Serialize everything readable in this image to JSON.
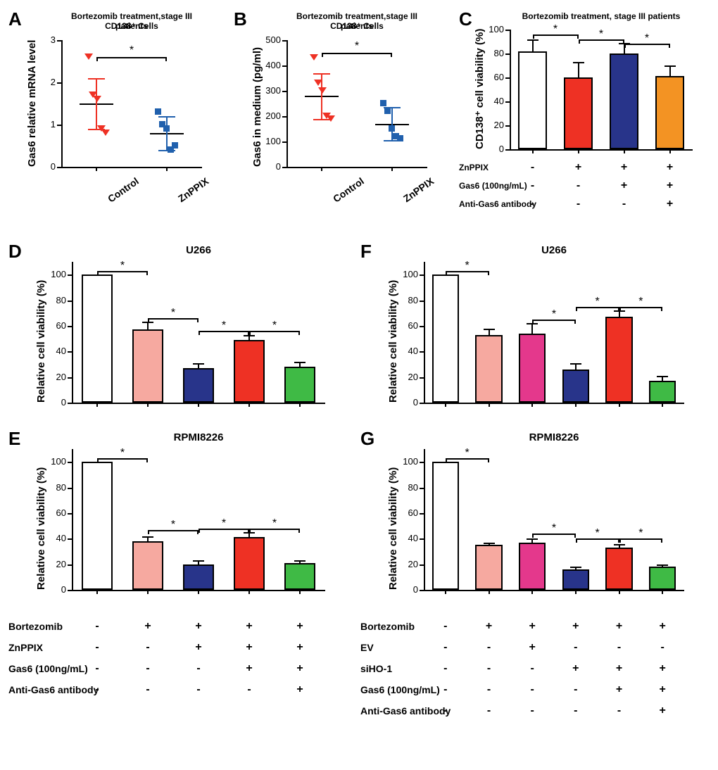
{
  "colors": {
    "red": "#ee3124",
    "blue_deep": "#28348a",
    "blue_bright": "#2060ad",
    "salmon": "#f6a9a0",
    "magenta": "#e4388c",
    "orange": "#f39323",
    "green": "#3fba45",
    "white": "#ffffff",
    "black": "#000000"
  },
  "axis_font_size": 13,
  "axis_label_font_size": 15,
  "panelA": {
    "letter": "A",
    "title_l1": "Bortezomib treatment,stage III patients",
    "title_l2": "CD138⁺ Cells",
    "title_fontsize": 12,
    "ylabel": "Gas6 relative mRNA level",
    "ylim": [
      0,
      3
    ],
    "yticks": [
      0,
      1,
      2,
      3
    ],
    "categories": [
      "Control",
      "ZnPPIX"
    ],
    "groups": [
      {
        "color": "#ee3124",
        "marker": "triangle-down",
        "points": [
          2.6,
          1.7,
          1.6,
          0.9,
          0.8
        ],
        "mean": 1.5,
        "err": 0.6
      },
      {
        "color": "#2060ad",
        "marker": "square",
        "points": [
          1.3,
          1.0,
          0.9,
          0.4,
          0.5
        ],
        "mean": 0.8,
        "err": 0.4
      }
    ],
    "sig": {
      "from": 0,
      "to": 1,
      "y": 2.6,
      "label": "*"
    }
  },
  "panelB": {
    "letter": "B",
    "title_l1": "Bortezomib treatment,stage III patients",
    "title_l2": "CD138⁺ Cells",
    "title_fontsize": 12,
    "ylabel": "Gas6 in medium (pg/ml)",
    "ylim": [
      0,
      500
    ],
    "yticks": [
      0,
      100,
      200,
      300,
      400,
      500
    ],
    "categories": [
      "Control",
      "ZnPPIX"
    ],
    "groups": [
      {
        "color": "#ee3124",
        "marker": "triangle-down",
        "points": [
          430,
          330,
          300,
          200,
          190
        ],
        "mean": 280,
        "err": 90
      },
      {
        "color": "#2060ad",
        "marker": "square",
        "points": [
          250,
          220,
          150,
          120,
          110
        ],
        "mean": 170,
        "err": 65
      }
    ],
    "sig": {
      "from": 0,
      "to": 1,
      "y": 450,
      "label": "*"
    }
  },
  "panelC": {
    "letter": "C",
    "title": "Bortezomib treatment, stage III patients",
    "title_fontsize": 12,
    "ylabel": "CD138⁺ cell viability (%)",
    "ylim": [
      0,
      100
    ],
    "yticks": [
      0,
      20,
      40,
      60,
      80,
      100
    ],
    "bars": [
      {
        "value": 82,
        "err": 10,
        "color": "#ffffff"
      },
      {
        "value": 60,
        "err": 13,
        "color": "#ee3124"
      },
      {
        "value": 80,
        "err": 9,
        "color": "#28348a"
      },
      {
        "value": 61,
        "err": 9,
        "color": "#f39323"
      }
    ],
    "sigs": [
      {
        "from": 0,
        "to": 1,
        "y": 96,
        "label": "*"
      },
      {
        "from": 1,
        "to": 2,
        "y": 92,
        "label": "*"
      },
      {
        "from": 2,
        "to": 3,
        "y": 88,
        "label": "*"
      }
    ],
    "cond_labels": [
      "ZnPPIX",
      "Gas6 (100ng/mL)",
      "Anti-Gas6 antibody"
    ],
    "cond_matrix": [
      [
        "-",
        "+",
        "+",
        "+"
      ],
      [
        "-",
        "-",
        "+",
        "+"
      ],
      [
        "-",
        "-",
        "-",
        "+"
      ]
    ]
  },
  "panelD": {
    "letter": "D",
    "title": "U266",
    "title_fontsize": 15,
    "ylabel": "Relative cell viability (%)",
    "ylim": [
      0,
      110
    ],
    "yticks": [
      0,
      20,
      40,
      60,
      80,
      100
    ],
    "bars": [
      {
        "value": 100,
        "err": 0,
        "color": "#ffffff"
      },
      {
        "value": 57,
        "err": 6,
        "color": "#f6a9a0"
      },
      {
        "value": 27,
        "err": 4,
        "color": "#28348a"
      },
      {
        "value": 49,
        "err": 4,
        "color": "#ee3124"
      },
      {
        "value": 28,
        "err": 4,
        "color": "#3fba45"
      }
    ],
    "sigs": [
      {
        "from": 0,
        "to": 1,
        "y": 103,
        "label": "*"
      },
      {
        "from": 1,
        "to": 2,
        "y": 66,
        "label": "*"
      },
      {
        "from": 2,
        "to": 3,
        "y": 56,
        "label": "*"
      },
      {
        "from": 3,
        "to": 4,
        "y": 56,
        "label": "*"
      }
    ]
  },
  "panelE": {
    "letter": "E",
    "title": "RPMI8226",
    "title_fontsize": 15,
    "ylabel": "Relative cell viability (%)",
    "ylim": [
      0,
      110
    ],
    "yticks": [
      0,
      20,
      40,
      60,
      80,
      100
    ],
    "bars": [
      {
        "value": 100,
        "err": 0,
        "color": "#ffffff"
      },
      {
        "value": 38,
        "err": 4,
        "color": "#f6a9a0"
      },
      {
        "value": 20,
        "err": 3,
        "color": "#28348a"
      },
      {
        "value": 41,
        "err": 4,
        "color": "#ee3124"
      },
      {
        "value": 21,
        "err": 2,
        "color": "#3fba45"
      }
    ],
    "sigs": [
      {
        "from": 0,
        "to": 1,
        "y": 103,
        "label": "*"
      },
      {
        "from": 1,
        "to": 2,
        "y": 47,
        "label": "*"
      },
      {
        "from": 2,
        "to": 3,
        "y": 48,
        "label": "*"
      },
      {
        "from": 3,
        "to": 4,
        "y": 48,
        "label": "*"
      }
    ],
    "cond_labels_DE": [
      "Bortezomib",
      "ZnPPIX",
      "Gas6 (100ng/mL)",
      "Anti-Gas6 antibody"
    ],
    "cond_matrix_DE": [
      [
        "-",
        "+",
        "+",
        "+",
        "+"
      ],
      [
        "-",
        "-",
        "+",
        "+",
        "+"
      ],
      [
        "-",
        "-",
        "-",
        "+",
        "+"
      ],
      [
        "-",
        "-",
        "-",
        "-",
        "+"
      ]
    ]
  },
  "panelF": {
    "letter": "F",
    "title": "U266",
    "title_fontsize": 15,
    "ylabel": "Relative cell viability (%)",
    "ylim": [
      0,
      110
    ],
    "yticks": [
      0,
      20,
      40,
      60,
      80,
      100
    ],
    "bars": [
      {
        "value": 100,
        "err": 0,
        "color": "#ffffff"
      },
      {
        "value": 53,
        "err": 5,
        "color": "#f6a9a0"
      },
      {
        "value": 54,
        "err": 8,
        "color": "#e4388c"
      },
      {
        "value": 26,
        "err": 5,
        "color": "#28348a"
      },
      {
        "value": 67,
        "err": 5,
        "color": "#ee3124"
      },
      {
        "value": 17,
        "err": 4,
        "color": "#3fba45"
      }
    ],
    "sigs": [
      {
        "from": 0,
        "to": 1,
        "y": 103,
        "label": "*"
      },
      {
        "from": 2,
        "to": 3,
        "y": 65,
        "label": "*"
      },
      {
        "from": 3,
        "to": 4,
        "y": 75,
        "label": "*"
      },
      {
        "from": 4,
        "to": 5,
        "y": 75,
        "label": "*"
      }
    ]
  },
  "panelG": {
    "letter": "G",
    "title": "RPMI8226",
    "title_fontsize": 15,
    "ylabel": "Relative cell viability (%)",
    "ylim": [
      0,
      110
    ],
    "yticks": [
      0,
      20,
      40,
      60,
      80,
      100
    ],
    "bars": [
      {
        "value": 100,
        "err": 0,
        "color": "#ffffff"
      },
      {
        "value": 35,
        "err": 2,
        "color": "#f6a9a0"
      },
      {
        "value": 37,
        "err": 3,
        "color": "#e4388c"
      },
      {
        "value": 16,
        "err": 2,
        "color": "#28348a"
      },
      {
        "value": 33,
        "err": 3,
        "color": "#ee3124"
      },
      {
        "value": 18,
        "err": 2,
        "color": "#3fba45"
      }
    ],
    "sigs": [
      {
        "from": 0,
        "to": 1,
        "y": 103,
        "label": "*"
      },
      {
        "from": 2,
        "to": 3,
        "y": 44,
        "label": "*"
      },
      {
        "from": 3,
        "to": 4,
        "y": 40,
        "label": "*"
      },
      {
        "from": 4,
        "to": 5,
        "y": 40,
        "label": "*"
      }
    ],
    "cond_labels_FG": [
      "Bortezomib",
      "EV",
      "siHO-1",
      "Gas6 (100ng/mL)",
      "Anti-Gas6 antibody"
    ],
    "cond_matrix_FG": [
      [
        "-",
        "+",
        "+",
        "+",
        "+",
        "+"
      ],
      [
        "-",
        "-",
        "+",
        "-",
        "-",
        "-"
      ],
      [
        "-",
        "-",
        "-",
        "+",
        "+",
        "+"
      ],
      [
        "-",
        "-",
        "-",
        "-",
        "+",
        "+"
      ],
      [
        "-",
        "-",
        "-",
        "-",
        "-",
        "+"
      ]
    ]
  }
}
